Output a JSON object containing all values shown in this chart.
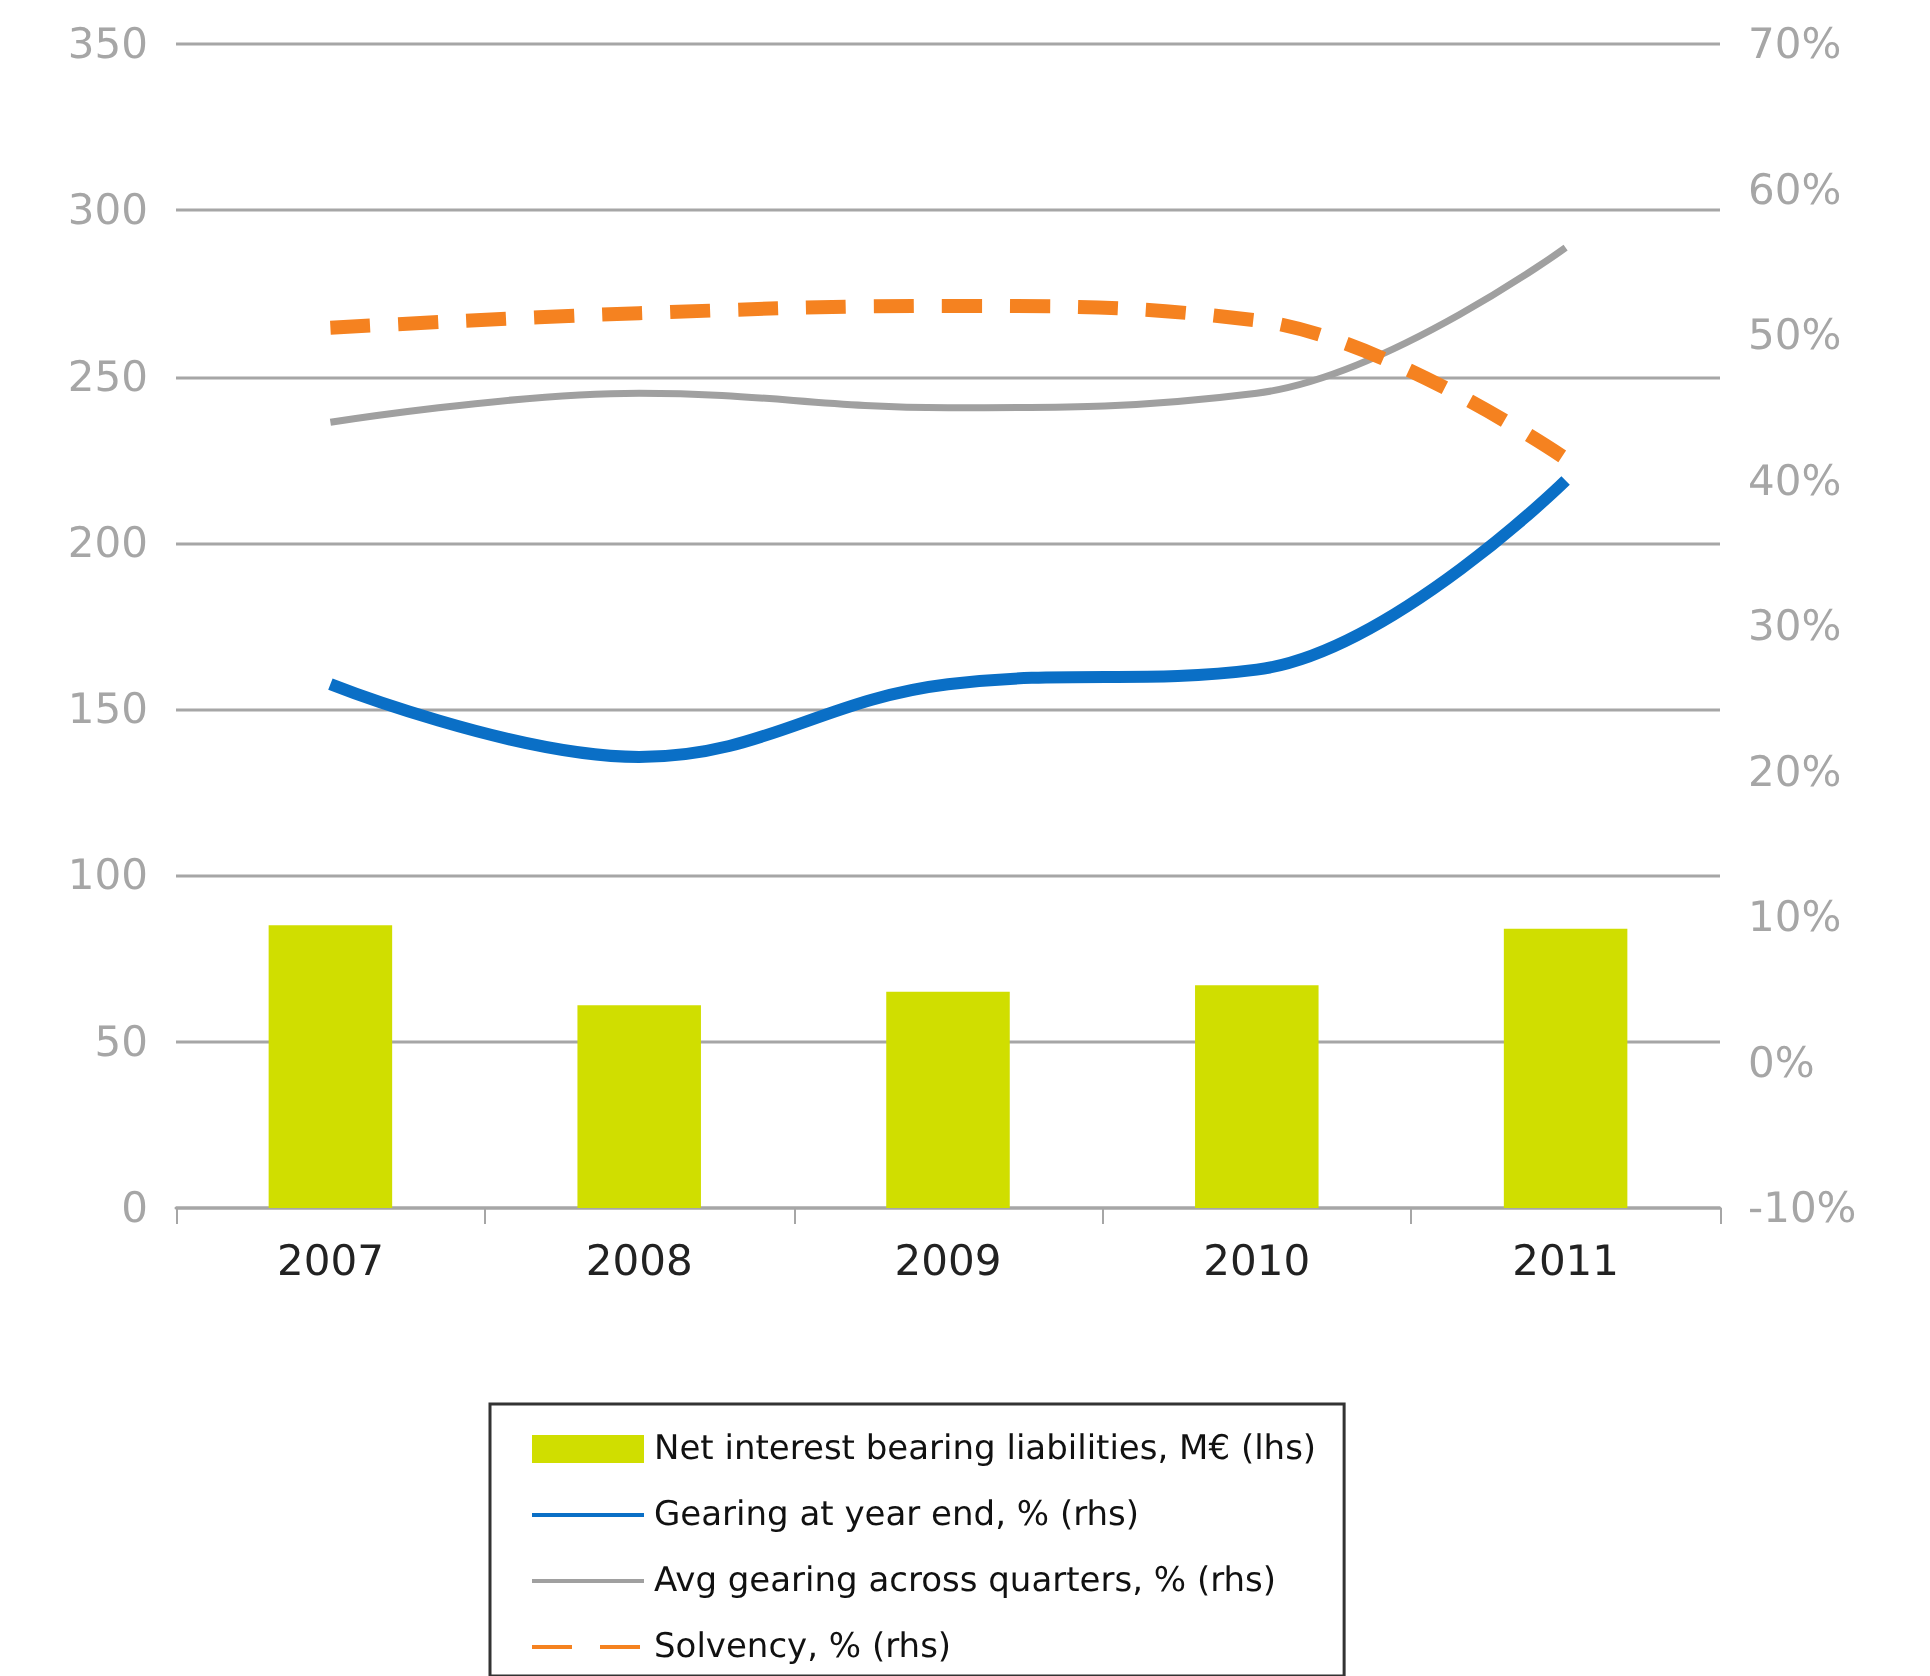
{
  "chart_data": {
    "type": "bar",
    "categories": [
      "2007",
      "2008",
      "2009",
      "2010",
      "2011"
    ],
    "series": [
      {
        "name": "Net interest bearing liabilities, M€ (lhs)",
        "color": "#d0de00",
        "values": [
          85,
          61,
          65,
          67,
          84
        ]
      },
      {
        "name": "Gearing at year end, % (rhs)",
        "type": "line",
        "axis": "y2",
        "color": "#0a6fc6",
        "line_style": "solid",
        "values": [
          26,
          21,
          26,
          27,
          40
        ]
      },
      {
        "name": "Avg gearing across quarters, % (rhs)",
        "type": "line",
        "axis": "y2",
        "color": "#a0a0a0",
        "line_style": "solid",
        "values": [
          44,
          46,
          45,
          46,
          56
        ]
      },
      {
        "name": "Solvency, % (rhs)",
        "type": "line",
        "axis": "y2",
        "color": "#f58220",
        "line_style": "dashed",
        "values": [
          50.5,
          51.5,
          52,
          51,
          41.5
        ]
      }
    ],
    "ylim": [
      0,
      350
    ],
    "yticks": [
      0,
      50,
      100,
      150,
      200,
      250,
      300,
      350
    ],
    "y2lim": [
      -10,
      70
    ],
    "y2ticks": [
      {
        "value": -10,
        "label": "-10%"
      },
      {
        "value": 0,
        "label": "0%"
      },
      {
        "value": 10,
        "label": "10%"
      },
      {
        "value": 20,
        "label": "20%"
      },
      {
        "value": 30,
        "label": "30%"
      },
      {
        "value": 40,
        "label": "40%"
      },
      {
        "value": 50,
        "label": "50%"
      },
      {
        "value": 60,
        "label": "60%"
      },
      {
        "value": 70,
        "label": "70%"
      }
    ],
    "grid": "y",
    "legend": "bottom",
    "marker": "none"
  }
}
